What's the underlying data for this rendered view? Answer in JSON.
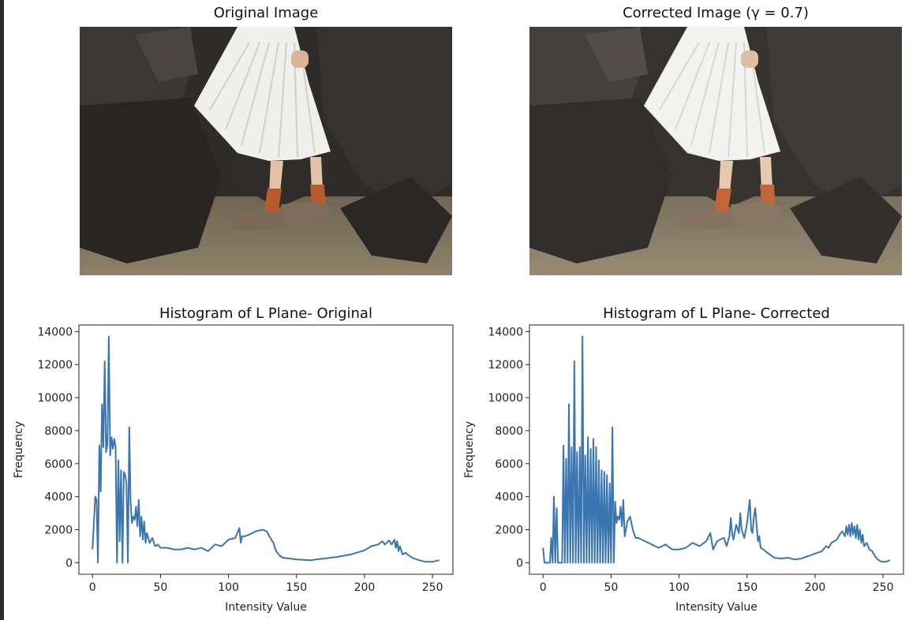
{
  "images": [
    {
      "title": "Original Image"
    },
    {
      "title": "Corrected Image (γ = 0.7)"
    }
  ],
  "chart_data": [
    {
      "type": "line",
      "title": "Histogram of L Plane- Original",
      "xlabel": "Intensity Value",
      "ylabel": "Frequency",
      "xlim": [
        -10,
        265
      ],
      "ylim": [
        -700,
        14400
      ],
      "xticks": [
        0,
        50,
        100,
        150,
        200,
        250
      ],
      "yticks": [
        0,
        2000,
        4000,
        6000,
        8000,
        10000,
        12000,
        14000
      ],
      "color": "#3b75af",
      "series": [
        {
          "x": [
            0,
            2,
            3,
            4,
            5,
            6,
            7,
            8,
            9,
            10,
            11,
            12,
            13,
            14,
            15,
            16,
            17,
            18,
            19,
            20,
            21,
            22,
            23,
            24,
            25,
            26,
            27,
            28,
            29,
            30,
            31,
            32,
            33,
            34,
            35,
            36,
            37,
            38,
            39,
            40,
            42,
            44,
            46,
            48,
            50,
            55,
            60,
            65,
            70,
            75,
            80,
            85,
            90,
            95,
            100,
            105,
            108,
            109,
            110,
            112,
            115,
            120,
            125,
            128,
            130,
            133,
            135,
            138,
            140,
            145,
            150,
            160,
            170,
            180,
            190,
            200,
            205,
            210,
            213,
            215,
            218,
            220,
            222,
            223,
            224,
            225,
            226,
            228,
            230,
            235,
            240,
            245,
            250,
            252,
            255
          ],
          "y": [
            800,
            4000,
            3800,
            0,
            7100,
            4300,
            9600,
            7000,
            12200,
            6700,
            7200,
            13700,
            6500,
            7600,
            6900,
            7500,
            7000,
            0,
            6200,
            1300,
            5600,
            0,
            5500,
            5300,
            4800,
            0,
            8200,
            3700,
            2400,
            2800,
            2600,
            3400,
            2200,
            3800,
            1600,
            2800,
            1400,
            2500,
            1200,
            1800,
            1200,
            1500,
            1000,
            1100,
            900,
            900,
            800,
            800,
            900,
            800,
            900,
            700,
            1100,
            1000,
            1400,
            1500,
            2100,
            1200,
            1600,
            1600,
            1700,
            1900,
            2000,
            1900,
            1600,
            1200,
            700,
            400,
            300,
            250,
            200,
            150,
            250,
            350,
            500,
            750,
            1000,
            1100,
            1300,
            1100,
            1350,
            1100,
            1400,
            900,
            1300,
            700,
            1000,
            500,
            600,
            300,
            150,
            50,
            50,
            100,
            150
          ]
        }
      ]
    },
    {
      "type": "line",
      "title": "Histogram of L Plane- Corrected",
      "xlabel": "Intensity Value",
      "ylabel": "Frequency",
      "xlim": [
        -10,
        265
      ],
      "ylim": [
        -700,
        14400
      ],
      "xticks": [
        0,
        50,
        100,
        150,
        200,
        250
      ],
      "yticks": [
        0,
        2000,
        4000,
        6000,
        8000,
        10000,
        12000,
        14000
      ],
      "color": "#3b75af",
      "series": [
        {
          "x": [
            0,
            1,
            2,
            3,
            4,
            5,
            6,
            7,
            8,
            9,
            10,
            11,
            12,
            13,
            14,
            15,
            16,
            17,
            18,
            19,
            20,
            21,
            22,
            23,
            24,
            25,
            26,
            27,
            28,
            29,
            30,
            31,
            32,
            33,
            34,
            35,
            36,
            37,
            38,
            39,
            40,
            41,
            42,
            43,
            44,
            45,
            46,
            47,
            48,
            49,
            50,
            51,
            52,
            53,
            54,
            55,
            56,
            57,
            58,
            59,
            60,
            62,
            64,
            66,
            68,
            70,
            75,
            80,
            85,
            90,
            95,
            100,
            105,
            110,
            115,
            120,
            123,
            125,
            128,
            130,
            133,
            135,
            137,
            138,
            139,
            140,
            142,
            144,
            145,
            146,
            148,
            150,
            152,
            153,
            154,
            155,
            156,
            158,
            159,
            160,
            162,
            165,
            170,
            175,
            180,
            185,
            190,
            195,
            200,
            205,
            208,
            210,
            212,
            214,
            216,
            218,
            220,
            222,
            223,
            224,
            225,
            226,
            227,
            228,
            229,
            230,
            231,
            232,
            233,
            234,
            235,
            236,
            238,
            240,
            242,
            244,
            246,
            248,
            250,
            252,
            255
          ],
          "y": [
            900,
            0,
            0,
            0,
            0,
            0,
            1500,
            0,
            4000,
            0,
            3300,
            0,
            0,
            0,
            0,
            7100,
            0,
            6300,
            0,
            9600,
            0,
            7000,
            0,
            12200,
            0,
            6700,
            0,
            7000,
            0,
            13700,
            0,
            6500,
            0,
            7600,
            0,
            6900,
            0,
            7500,
            0,
            7000,
            0,
            6200,
            0,
            5600,
            0,
            5500,
            0,
            5300,
            0,
            4800,
            0,
            8200,
            0,
            3700,
            2400,
            2800,
            2600,
            3400,
            2200,
            3800,
            1600,
            2500,
            2800,
            2000,
            1500,
            1500,
            1300,
            1100,
            900,
            1100,
            800,
            800,
            900,
            1200,
            1000,
            1300,
            1800,
            800,
            1300,
            1400,
            1500,
            1000,
            1600,
            2700,
            1800,
            1400,
            2300,
            1800,
            3000,
            2000,
            1500,
            2400,
            3800,
            2000,
            1800,
            2800,
            3300,
            1300,
            1600,
            900,
            800,
            600,
            300,
            250,
            300,
            200,
            250,
            400,
            550,
            700,
            1000,
            900,
            1200,
            1300,
            1400,
            1700,
            1900,
            1600,
            2200,
            1700,
            2300,
            1600,
            2400,
            1700,
            2200,
            1500,
            2300,
            1400,
            2000,
            1200,
            1700,
            1000,
            1200,
            800,
            700,
            400,
            200,
            100,
            50,
            50,
            150
          ]
        }
      ]
    }
  ]
}
